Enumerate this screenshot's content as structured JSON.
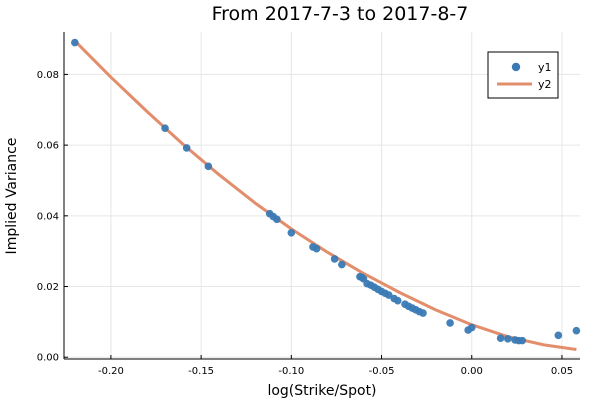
{
  "chart_data": {
    "type": "scatter",
    "title": "From 2017-7-3 to 2017-8-7",
    "xlabel": "log(Strike/Spot)",
    "ylabel": "Implied Variance",
    "xlim": [
      -0.226,
      0.06
    ],
    "ylim": [
      -0.0005,
      0.092
    ],
    "xticks": [
      -0.2,
      -0.15,
      -0.1,
      -0.05,
      0.0,
      0.05
    ],
    "xtick_labels": [
      "-0.20",
      "-0.15",
      "-0.10",
      "-0.05",
      "0.00",
      "0.05"
    ],
    "yticks": [
      0.0,
      0.02,
      0.04,
      0.06,
      0.08
    ],
    "ytick_labels": [
      "0.00",
      "0.02",
      "0.04",
      "0.06",
      "0.08"
    ],
    "grid": true,
    "legend_position": "top-right",
    "series": [
      {
        "name": "y1",
        "kind": "scatter",
        "color": "#3a7ab4",
        "points": [
          [
            -0.22,
            0.089
          ],
          [
            -0.17,
            0.0648
          ],
          [
            -0.158,
            0.0592
          ],
          [
            -0.146,
            0.054
          ],
          [
            -0.112,
            0.0406
          ],
          [
            -0.11,
            0.0398
          ],
          [
            -0.108,
            0.039
          ],
          [
            -0.1,
            0.0352
          ],
          [
            -0.088,
            0.0312
          ],
          [
            -0.086,
            0.0307
          ],
          [
            -0.076,
            0.0278
          ],
          [
            -0.072,
            0.0262
          ],
          [
            -0.062,
            0.0228
          ],
          [
            -0.061,
            0.0226
          ],
          [
            -0.06,
            0.0222
          ],
          [
            -0.058,
            0.0208
          ],
          [
            -0.056,
            0.0204
          ],
          [
            -0.054,
            0.0198
          ],
          [
            -0.052,
            0.0192
          ],
          [
            -0.05,
            0.0186
          ],
          [
            -0.048,
            0.0181
          ],
          [
            -0.046,
            0.0176
          ],
          [
            -0.043,
            0.0166
          ],
          [
            -0.041,
            0.016
          ],
          [
            -0.037,
            0.015
          ],
          [
            -0.035,
            0.0144
          ],
          [
            -0.033,
            0.0139
          ],
          [
            -0.031,
            0.0134
          ],
          [
            -0.029,
            0.0129
          ],
          [
            -0.027,
            0.0125
          ],
          [
            -0.012,
            0.0097
          ],
          [
            -0.002,
            0.0077
          ],
          [
            0.0,
            0.0084
          ],
          [
            0.016,
            0.0054
          ],
          [
            0.02,
            0.0052
          ],
          [
            0.024,
            0.0049
          ],
          [
            0.026,
            0.0047
          ],
          [
            0.028,
            0.0047
          ],
          [
            0.048,
            0.0062
          ],
          [
            0.058,
            0.0075
          ]
        ]
      },
      {
        "name": "y2",
        "kind": "line",
        "color": "#e28d6b",
        "points": [
          [
            -0.22,
            0.0895
          ],
          [
            -0.2,
            0.0792
          ],
          [
            -0.18,
            0.0695
          ],
          [
            -0.16,
            0.0602
          ],
          [
            -0.14,
            0.0516
          ],
          [
            -0.12,
            0.0436
          ],
          [
            -0.1,
            0.0363
          ],
          [
            -0.08,
            0.0297
          ],
          [
            -0.06,
            0.0237
          ],
          [
            -0.04,
            0.0183
          ],
          [
            -0.02,
            0.0134
          ],
          [
            0.0,
            0.0092
          ],
          [
            0.02,
            0.0058
          ],
          [
            0.04,
            0.0035
          ],
          [
            0.058,
            0.0022
          ]
        ]
      }
    ]
  }
}
